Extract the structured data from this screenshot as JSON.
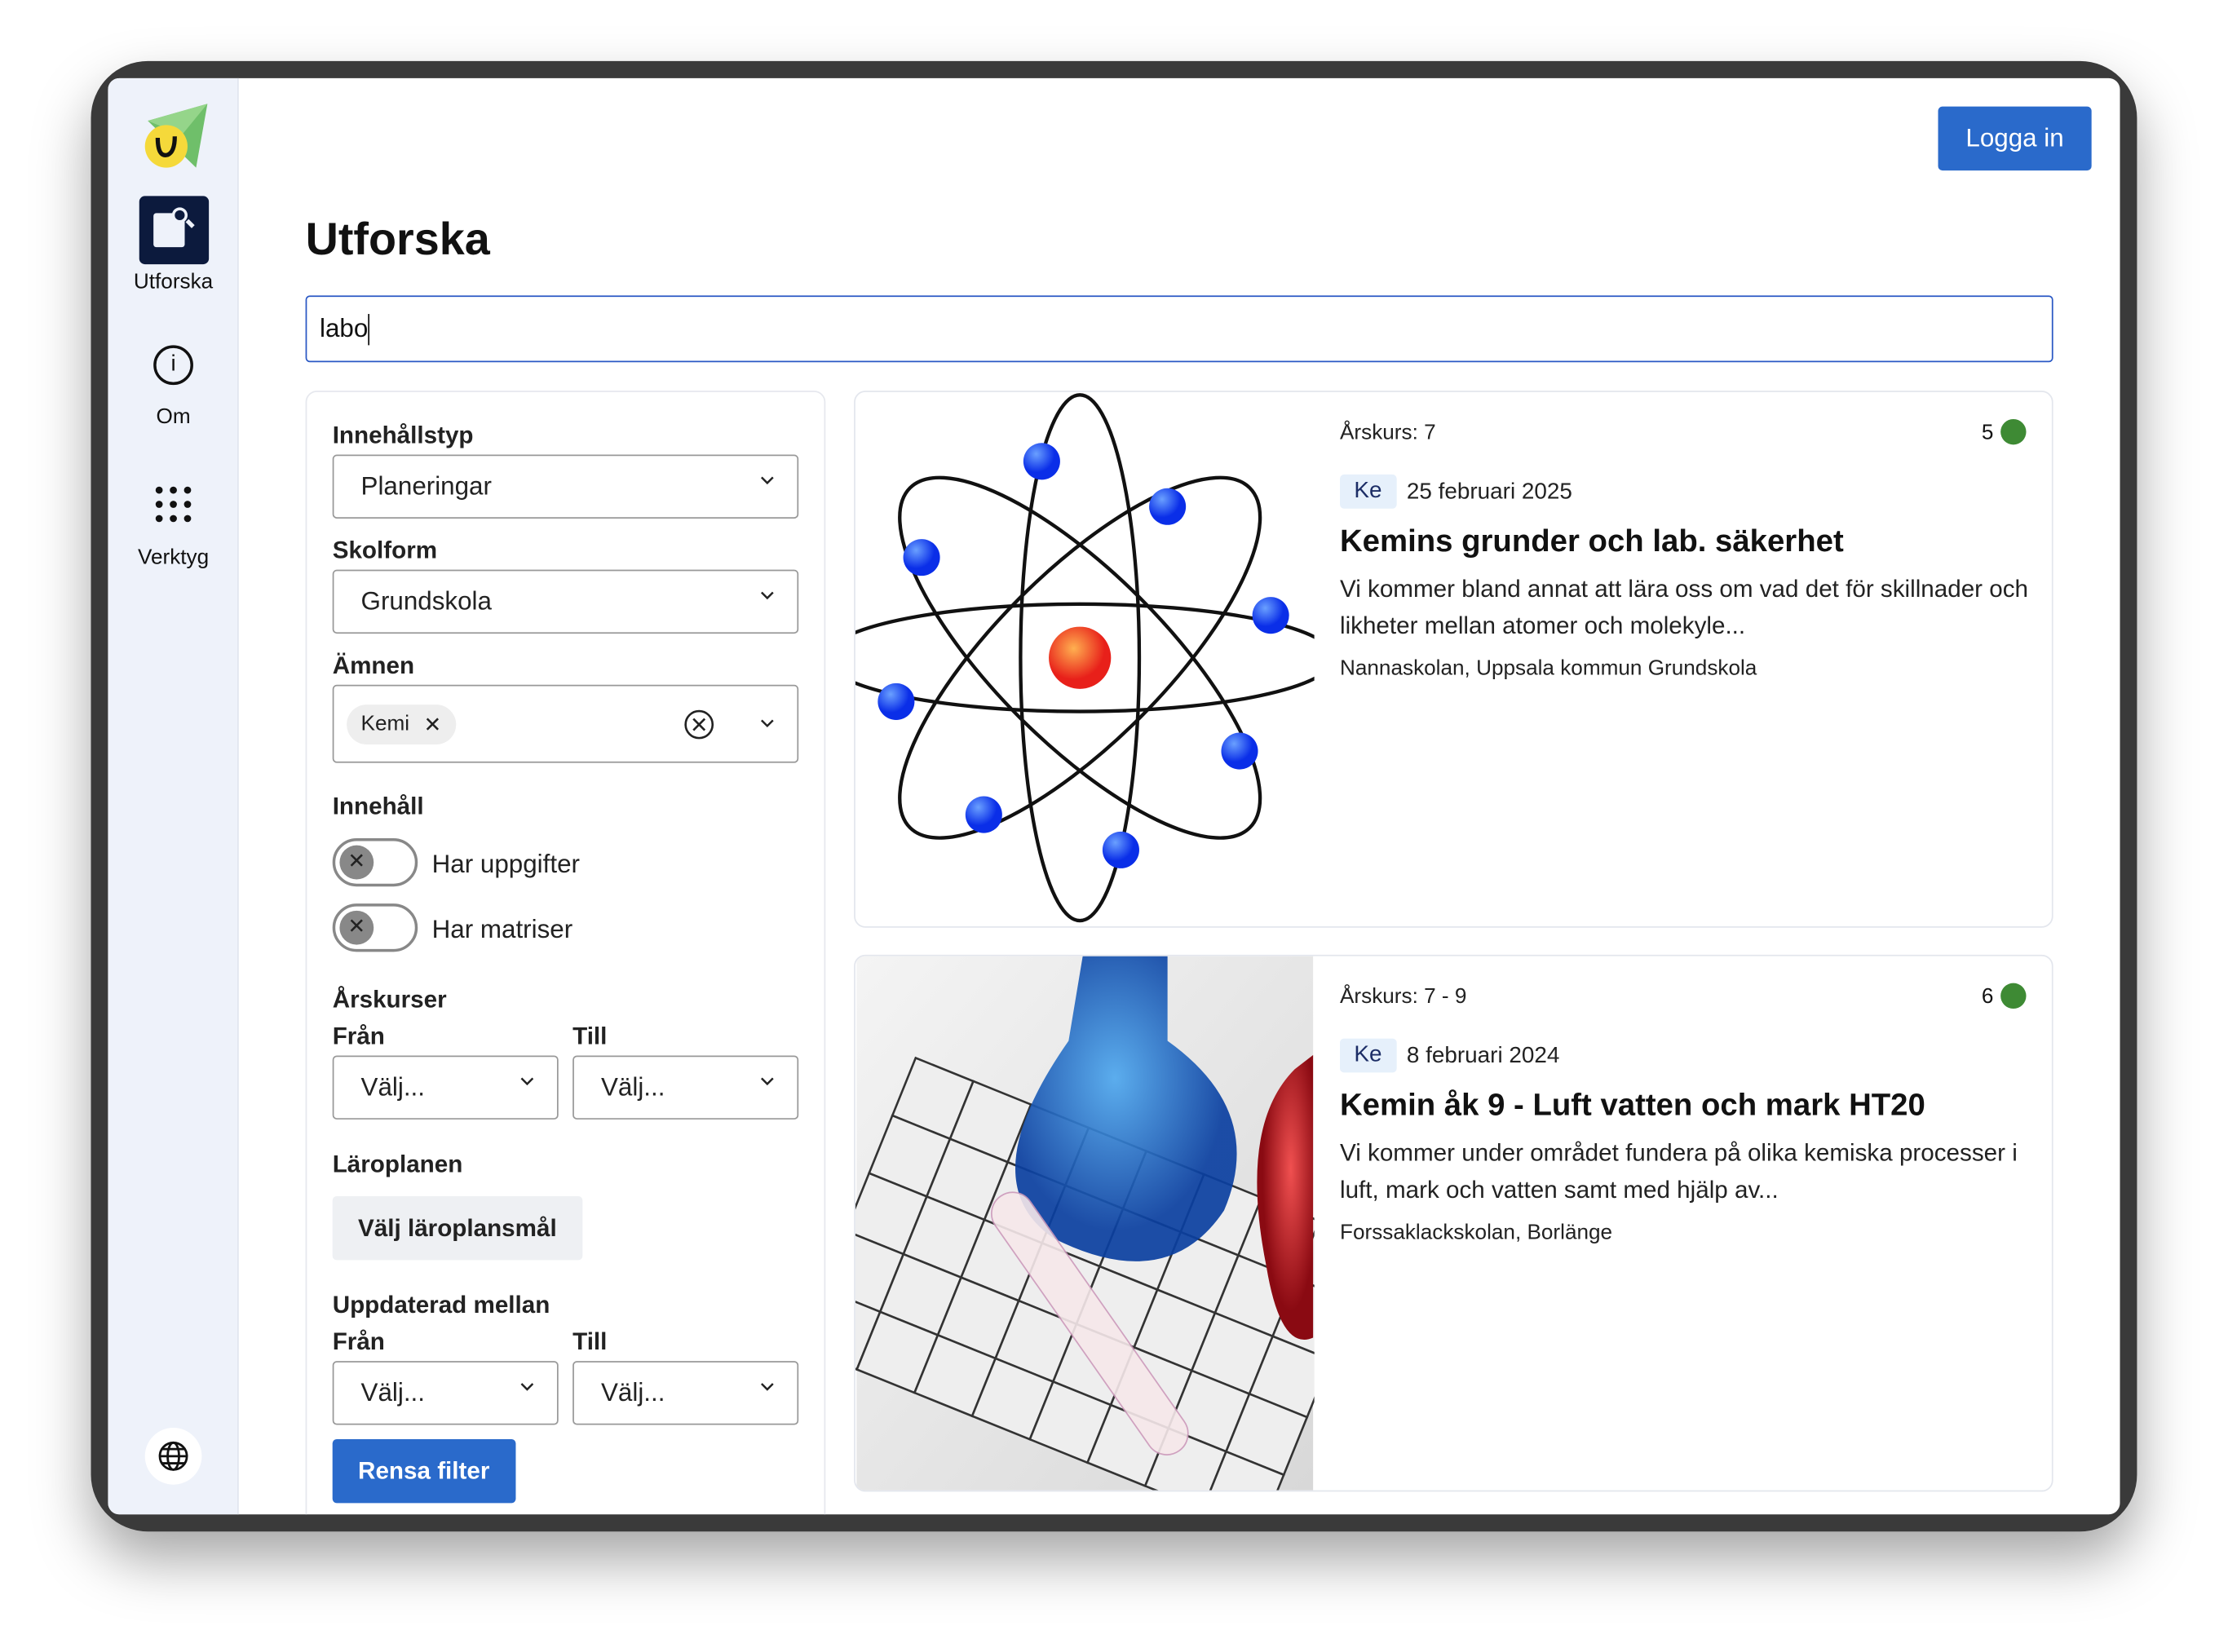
{
  "sidebar": {
    "items": [
      {
        "label": "Utforska",
        "icon": "explore-document-search-icon",
        "active": true
      },
      {
        "label": "Om",
        "icon": "info-icon"
      },
      {
        "label": "Verktyg",
        "icon": "grid-dots-icon"
      }
    ],
    "language_icon": "globe-icon"
  },
  "header": {
    "login_label": "Logga in"
  },
  "page": {
    "title": "Utforska"
  },
  "search": {
    "value": "labo"
  },
  "filters": {
    "content_type": {
      "label": "Innehållstyp",
      "value": "Planeringar"
    },
    "school_form": {
      "label": "Skolform",
      "value": "Grundskola"
    },
    "subjects": {
      "label": "Ämnen",
      "chips": [
        "Kemi"
      ]
    },
    "content": {
      "label": "Innehåll",
      "toggles": [
        {
          "label": "Har uppgifter",
          "on": false
        },
        {
          "label": "Har matriser",
          "on": false
        }
      ]
    },
    "grades": {
      "label": "Årskurser",
      "from_label": "Från",
      "to_label": "Till",
      "from_value": "Välj...",
      "to_value": "Välj..."
    },
    "curriculum": {
      "label": "Läroplanen",
      "button": "Välj läroplansmål"
    },
    "updated": {
      "label": "Uppdaterad mellan",
      "from_label": "Från",
      "to_label": "Till",
      "from_value": "Välj...",
      "to_value": "Välj..."
    },
    "clear_label": "Rensa filter"
  },
  "results": [
    {
      "grade": "Årskurs: 7",
      "count": "5",
      "subject_tag": "Ke",
      "date": "25 februari 2025",
      "title": "Kemins grunder och lab. säkerhet",
      "description": "Vi kommer bland annat att lära oss om vad det för skillnader och likheter mellan atomer och molekyle...",
      "school": "Nannaskolan, Uppsala kommun Grundskola",
      "image": "atom-illustration"
    },
    {
      "grade": "Årskurs: 7 - 9",
      "count": "6",
      "subject_tag": "Ke",
      "date": "8 februari 2024",
      "title": "Kemin åk 9 - Luft vatten och mark HT20",
      "description": "Vi kommer under området fundera på olika kemiska processer i luft, mark och vatten samt med hjälp av...",
      "school": "Forssaklackskolan, Borlänge",
      "image": "chemistry-flasks-photo"
    }
  ],
  "colors": {
    "accent": "#2a6acb",
    "sidebar_bg": "#eef2fa",
    "active_nav": "#0c1a3d",
    "status_dot": "#3e8a34",
    "tag_bg": "#e6f0fb"
  }
}
